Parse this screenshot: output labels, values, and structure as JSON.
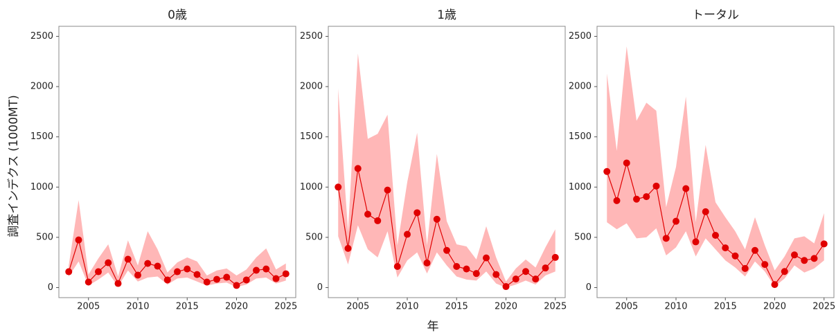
{
  "ylabel": "調査インデクス (1000MT)",
  "xlabel": "年",
  "chart_data": [
    {
      "type": "line",
      "title": "0歳",
      "color": "#e00000",
      "band_color": "#ffaaaa",
      "x": [
        2003,
        2004,
        2005,
        2006,
        2007,
        2008,
        2009,
        2010,
        2011,
        2012,
        2013,
        2014,
        2015,
        2016,
        2017,
        2018,
        2019,
        2020,
        2021,
        2022,
        2023,
        2024,
        2025
      ],
      "values": [
        158,
        474,
        55,
        158,
        247,
        41,
        282,
        124,
        240,
        213,
        76,
        158,
        185,
        130,
        55,
        82,
        103,
        21,
        76,
        172,
        185,
        89,
        137
      ],
      "upper": [
        220,
        870,
        130,
        290,
        430,
        110,
        470,
        220,
        560,
        380,
        150,
        250,
        300,
        260,
        120,
        170,
        190,
        120,
        180,
        300,
        390,
        180,
        240
      ],
      "lower": [
        110,
        260,
        20,
        80,
        150,
        10,
        170,
        60,
        100,
        110,
        30,
        90,
        100,
        60,
        20,
        40,
        50,
        5,
        30,
        90,
        100,
        40,
        70
      ],
      "xlim": [
        2002,
        2026
      ],
      "ylim": [
        -100,
        2600
      ],
      "xticks": [
        2005,
        2010,
        2015,
        2020,
        2025
      ],
      "yticks": [
        0,
        500,
        1000,
        1500,
        2000,
        2500
      ]
    },
    {
      "type": "line",
      "title": "1歳",
      "color": "#e00000",
      "band_color": "#ffaaaa",
      "x": [
        2003,
        2004,
        2005,
        2006,
        2007,
        2008,
        2009,
        2010,
        2011,
        2012,
        2013,
        2014,
        2015,
        2016,
        2017,
        2018,
        2019,
        2020,
        2021,
        2022,
        2023,
        2024,
        2025
      ],
      "values": [
        1000,
        390,
        1185,
        730,
        665,
        970,
        210,
        530,
        745,
        245,
        680,
        370,
        210,
        185,
        140,
        295,
        130,
        10,
        85,
        160,
        85,
        195,
        300
      ],
      "upper": [
        1980,
        560,
        2330,
        1480,
        1530,
        1720,
        420,
        1050,
        1540,
        420,
        1330,
        660,
        430,
        410,
        280,
        610,
        300,
        60,
        190,
        280,
        200,
        400,
        580
      ],
      "lower": [
        510,
        230,
        620,
        380,
        300,
        560,
        100,
        270,
        350,
        140,
        350,
        220,
        110,
        80,
        70,
        160,
        40,
        0,
        30,
        70,
        30,
        120,
        160
      ],
      "xlim": [
        2002,
        2026
      ],
      "ylim": [
        -100,
        2600
      ],
      "xticks": [
        2005,
        2010,
        2015,
        2020,
        2025
      ],
      "yticks": [
        0,
        500,
        1000,
        1500,
        2000,
        2500
      ]
    },
    {
      "type": "line",
      "title": "トータル",
      "color": "#e00000",
      "band_color": "#ffaaaa",
      "x": [
        2003,
        2004,
        2005,
        2006,
        2007,
        2008,
        2009,
        2010,
        2011,
        2012,
        2013,
        2014,
        2015,
        2016,
        2017,
        2018,
        2019,
        2020,
        2021,
        2022,
        2023,
        2024,
        2025
      ],
      "values": [
        1155,
        865,
        1240,
        880,
        905,
        1010,
        490,
        660,
        985,
        455,
        755,
        520,
        395,
        315,
        190,
        370,
        230,
        30,
        160,
        325,
        270,
        290,
        435
      ],
      "upper": [
        2130,
        1360,
        2400,
        1660,
        1840,
        1760,
        800,
        1200,
        1900,
        650,
        1420,
        850,
        700,
        560,
        380,
        700,
        420,
        170,
        310,
        490,
        510,
        440,
        740
      ],
      "lower": [
        650,
        580,
        640,
        490,
        500,
        590,
        320,
        400,
        560,
        310,
        490,
        380,
        270,
        200,
        110,
        260,
        160,
        10,
        90,
        220,
        150,
        190,
        270
      ],
      "xlim": [
        2002,
        2026
      ],
      "ylim": [
        -100,
        2600
      ],
      "xticks": [
        2005,
        2010,
        2015,
        2020,
        2025
      ],
      "yticks": [
        0,
        500,
        1000,
        1500,
        2000,
        2500
      ]
    }
  ]
}
